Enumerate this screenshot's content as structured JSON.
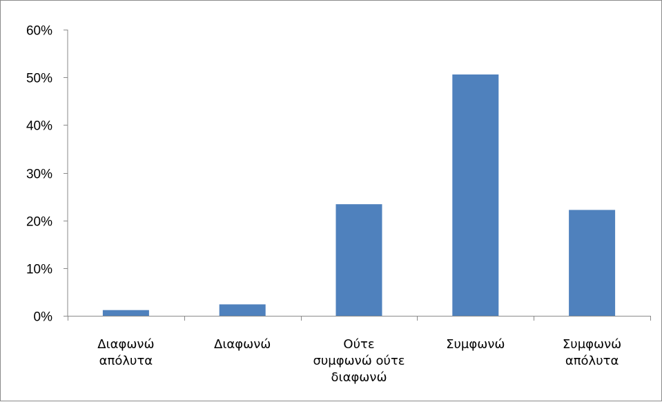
{
  "chart_data": {
    "type": "bar",
    "categories": [
      [
        "Διαφωνώ",
        "απόλυτα"
      ],
      [
        "Διαφωνώ"
      ],
      [
        "Ούτε",
        "συμφωνώ ούτε",
        "διαφωνώ"
      ],
      [
        "Συμφωνώ"
      ],
      [
        "Συμφωνώ",
        "απόλυτα"
      ]
    ],
    "values": [
      1.2,
      2.4,
      23.4,
      50.6,
      22.2
    ],
    "value_unit": "%",
    "ylim": [
      0,
      60
    ],
    "y_ticks": [
      0,
      10,
      20,
      30,
      40,
      50,
      60
    ],
    "y_tick_labels": [
      "0%",
      "10%",
      "20%",
      "30%",
      "40%",
      "50%",
      "60%"
    ],
    "title": "",
    "xlabel": "",
    "ylabel": "",
    "legend": "none",
    "grid": false,
    "bar_color": "#4f81bd",
    "axis_color": "#898989"
  }
}
